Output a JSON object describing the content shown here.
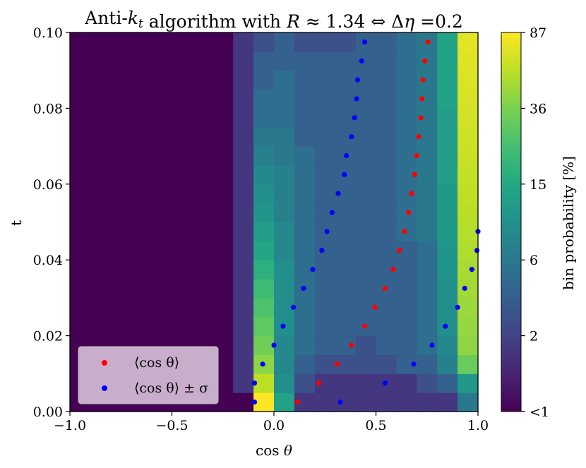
{
  "chart_data": {
    "type": "heatmap",
    "title": "Anti-k_t algorithm with R ≈ 1.34 ⇔ Δη =0.2",
    "xlabel": "cos θ",
    "ylabel": "t",
    "xlim": [
      -1.0,
      1.0
    ],
    "ylim": [
      0.0,
      0.1
    ],
    "x_ticks": [
      -1.0,
      -0.5,
      0.0,
      0.5,
      1.0
    ],
    "x_tick_labels": [
      "−1.0",
      "−0.5",
      "0.0",
      "0.5",
      "1.0"
    ],
    "y_ticks": [
      0.0,
      0.02,
      0.04,
      0.06,
      0.08,
      0.1
    ],
    "y_tick_labels": [
      "0.00",
      "0.02",
      "0.04",
      "0.06",
      "0.08",
      "0.10"
    ],
    "heatmap": {
      "x_edges_start": -1.0,
      "x_edges_end": 1.0,
      "x_bins": 20,
      "y_edges_start": 0.0,
      "y_edges_end": 0.1,
      "y_bins": 20,
      "values_percent_rows_bottom_to_top": [
        [
          0,
          0,
          0,
          0,
          0,
          0,
          0,
          0,
          0,
          87,
          12,
          1,
          1,
          1,
          1,
          1,
          1,
          1,
          1,
          5
        ],
        [
          0,
          0,
          0,
          0,
          0,
          0,
          0,
          0,
          1,
          55,
          8,
          2,
          1,
          1,
          1,
          1,
          1,
          2,
          3,
          10
        ],
        [
          0,
          0,
          0,
          0,
          0,
          0,
          0,
          0,
          1,
          40,
          7,
          3,
          2,
          2,
          2,
          2,
          3,
          3,
          6,
          30
        ],
        [
          0,
          0,
          0,
          0,
          0,
          0,
          0,
          0,
          1,
          32,
          7,
          4,
          3,
          3,
          2,
          3,
          3,
          4,
          7,
          40
        ],
        [
          0,
          0,
          0,
          0,
          0,
          0,
          0,
          0,
          1,
          28,
          8,
          4,
          3,
          3,
          3,
          3,
          3,
          4,
          8,
          42
        ],
        [
          0,
          0,
          0,
          0,
          0,
          0,
          0,
          0,
          1,
          24,
          8,
          4,
          3,
          3,
          3,
          3,
          3,
          4,
          8,
          44
        ],
        [
          0,
          0,
          0,
          0,
          0,
          0,
          0,
          0,
          1,
          20,
          8,
          4,
          3,
          3,
          3,
          3,
          3,
          4,
          8,
          46
        ],
        [
          0,
          0,
          0,
          0,
          0,
          0,
          0,
          0,
          1,
          16,
          8,
          4,
          3,
          3,
          3,
          3,
          3,
          4,
          9,
          48
        ],
        [
          0,
          0,
          0,
          0,
          0,
          0,
          0,
          0,
          1,
          13,
          7,
          4,
          3,
          3,
          3,
          3,
          3,
          4,
          9,
          50
        ],
        [
          0,
          0,
          0,
          0,
          0,
          0,
          0,
          0,
          1,
          11,
          7,
          4,
          3,
          3,
          3,
          3,
          4,
          5,
          10,
          52
        ],
        [
          0,
          0,
          0,
          0,
          0,
          0,
          0,
          0,
          1,
          9,
          6,
          4,
          3,
          3,
          3,
          3,
          4,
          5,
          10,
          54
        ],
        [
          0,
          0,
          0,
          0,
          0,
          0,
          0,
          0,
          1,
          8,
          6,
          4,
          3,
          3,
          3,
          3,
          4,
          5,
          10,
          56
        ],
        [
          0,
          0,
          0,
          0,
          0,
          0,
          0,
          0,
          1,
          7,
          6,
          4,
          3,
          3,
          3,
          3,
          4,
          5,
          11,
          58
        ],
        [
          0,
          0,
          0,
          0,
          0,
          0,
          0,
          0,
          1,
          6,
          5,
          4,
          3,
          3,
          3,
          3,
          4,
          5,
          11,
          60
        ],
        [
          0,
          0,
          0,
          0,
          0,
          0,
          0,
          0,
          1,
          5,
          5,
          3,
          3,
          3,
          3,
          3,
          4,
          5,
          11,
          62
        ],
        [
          0,
          0,
          0,
          0,
          0,
          0,
          0,
          0,
          1,
          4,
          4,
          3,
          3,
          3,
          3,
          3,
          4,
          5,
          11,
          64
        ],
        [
          0,
          0,
          0,
          0,
          0,
          0,
          0,
          0,
          1,
          4,
          4,
          3,
          3,
          3,
          3,
          3,
          4,
          5,
          12,
          66
        ],
        [
          0,
          0,
          0,
          0,
          0,
          0,
          0,
          0,
          1,
          3,
          4,
          3,
          3,
          3,
          3,
          3,
          4,
          5,
          12,
          68
        ],
        [
          0,
          0,
          0,
          0,
          0,
          0,
          0,
          0,
          1,
          3,
          3,
          3,
          3,
          3,
          3,
          3,
          4,
          5,
          12,
          70
        ],
        [
          0,
          0,
          0,
          0,
          0,
          0,
          0,
          0,
          1,
          2,
          3,
          2,
          2,
          2,
          3,
          3,
          4,
          5,
          12,
          72
        ]
      ]
    },
    "colorbar": {
      "label": "bin probability [%]",
      "tick_labels": [
        "<1",
        "2",
        "6",
        "15",
        "36",
        "87"
      ],
      "max": 87
    },
    "legend": {
      "placement": "lower-left",
      "entries": [
        "⟨cos θ⟩",
        "⟨cos θ⟩ ± σ"
      ]
    },
    "series": [
      {
        "name": "⟨cos θ⟩",
        "color": "#ff0000",
        "x": [
          0.115,
          0.22,
          0.31,
          0.38,
          0.445,
          0.495,
          0.545,
          0.585,
          0.615,
          0.64,
          0.66,
          0.675,
          0.69,
          0.7,
          0.71,
          0.72,
          0.725,
          0.73,
          0.74,
          0.755
        ],
        "y": [
          0.0025,
          0.0075,
          0.0125,
          0.0175,
          0.0225,
          0.0275,
          0.0325,
          0.0375,
          0.0425,
          0.0475,
          0.0525,
          0.0575,
          0.0625,
          0.0675,
          0.0725,
          0.0775,
          0.0825,
          0.0875,
          0.0925,
          0.0975
        ]
      },
      {
        "name": "⟨cos θ⟩ ± σ",
        "color": "#0000ff",
        "x": [
          -0.095,
          -0.095,
          -0.055,
          0.0,
          0.045,
          0.095,
          0.145,
          0.19,
          0.235,
          0.26,
          0.285,
          0.315,
          0.345,
          0.355,
          0.38,
          0.395,
          0.405,
          0.41,
          0.43,
          0.445,
          0.325,
          0.545,
          0.685,
          0.775,
          0.84,
          0.9,
          0.935,
          0.97,
          0.995,
          1.0
        ],
        "y": [
          0.0025,
          0.0075,
          0.0125,
          0.0175,
          0.0225,
          0.0275,
          0.0325,
          0.0375,
          0.0425,
          0.0475,
          0.0525,
          0.0575,
          0.0625,
          0.0675,
          0.0725,
          0.0775,
          0.0825,
          0.0875,
          0.0925,
          0.0975,
          0.0025,
          0.0075,
          0.0125,
          0.0175,
          0.0225,
          0.0275,
          0.0325,
          0.0375,
          0.0425,
          0.0475
        ]
      }
    ]
  }
}
